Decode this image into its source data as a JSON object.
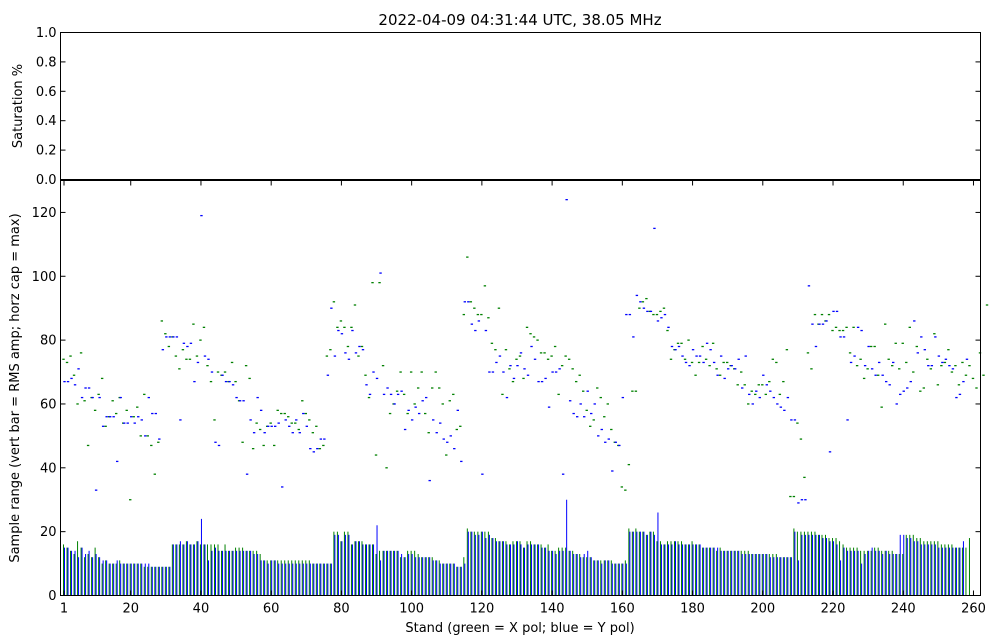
{
  "chart_data": {
    "title": "2022-04-09 04:31:44 UTC, 38.05 MHz",
    "xlabel": "Stand (green = X pol; blue = Y pol)",
    "colors": {
      "x_pol": "#008000",
      "y_pol": "#0000ff",
      "sat_line": "#c8c8c8"
    },
    "xlim": [
      0,
      262
    ],
    "xticks": [
      1,
      20,
      40,
      60,
      80,
      100,
      120,
      140,
      160,
      180,
      200,
      220,
      240,
      260
    ],
    "panels": [
      {
        "type": "line",
        "ylabel": "Saturation %",
        "ylim": [
          0,
          1
        ],
        "yticks": [
          "0.0",
          "0.2",
          "0.4",
          "0.6",
          "0.8",
          "1.0"
        ],
        "sat_value": 0
      },
      {
        "type": "bar",
        "ylabel": "Sample range (vert bar = RMS amp; horz cap = max)",
        "ylim": [
          0,
          130
        ],
        "yticks": [
          "0",
          "20",
          "40",
          "60",
          "80",
          "100",
          "120"
        ],
        "x_pol": {
          "rms": [
            16,
            15,
            14,
            13,
            17,
            15,
            12,
            13,
            12,
            15,
            12,
            10,
            11,
            10,
            10,
            10,
            11,
            10,
            10,
            10,
            10,
            10,
            10,
            9,
            9,
            9,
            9,
            9,
            9,
            9,
            9,
            16,
            16,
            16,
            16,
            17,
            16,
            16,
            17,
            16,
            16,
            16,
            16,
            16,
            16,
            14,
            16,
            14,
            14,
            15,
            15,
            15,
            14,
            14,
            14,
            14,
            13,
            11,
            11,
            11,
            11,
            11,
            11,
            11,
            11,
            11,
            11,
            11,
            11,
            11,
            11,
            10,
            10,
            10,
            10,
            10,
            10,
            20,
            20,
            17,
            20,
            20,
            16,
            17,
            17,
            17,
            16,
            16,
            16,
            13,
            14,
            14,
            14,
            14,
            14,
            14,
            12,
            12,
            14,
            14,
            14,
            13,
            12,
            12,
            12,
            12,
            11,
            11,
            10,
            10,
            10,
            10,
            9,
            9,
            12,
            21,
            20,
            20,
            20,
            20,
            20,
            20,
            18,
            18,
            17,
            17,
            17,
            16,
            17,
            17,
            17,
            15,
            17,
            17,
            16,
            16,
            16,
            15,
            16,
            14,
            14,
            15,
            15,
            15,
            14,
            14,
            13,
            13,
            12,
            12,
            12,
            11,
            11,
            11,
            11,
            11,
            11,
            10,
            10,
            10,
            11,
            21,
            20,
            21,
            20,
            20,
            19,
            20,
            20,
            17,
            17,
            16,
            17,
            17,
            17,
            17,
            17,
            16,
            16,
            17,
            16,
            16,
            15,
            15,
            15,
            15,
            14,
            15,
            14,
            14,
            14,
            14,
            14,
            14,
            14,
            14,
            13,
            13,
            13,
            13,
            13,
            13,
            13,
            13,
            12,
            12,
            12,
            12,
            21,
            20,
            20,
            20,
            20,
            20,
            20,
            19,
            19,
            19,
            18,
            18,
            18,
            17,
            16,
            15,
            15,
            15,
            15,
            14,
            14,
            14,
            14,
            15,
            15,
            14,
            14,
            14,
            14,
            13,
            13,
            13,
            19,
            19,
            19,
            18,
            18,
            17,
            17,
            17,
            17,
            17,
            16,
            16,
            16,
            16,
            15,
            15,
            15,
            15,
            18
          ],
          "max": [
            74,
            73,
            75,
            69,
            60,
            76,
            61,
            47,
            62,
            58,
            63,
            68,
            53,
            56,
            61,
            57,
            62,
            54,
            58,
            30,
            56,
            59,
            50,
            63,
            50,
            47,
            38,
            48,
            86,
            82,
            78,
            81,
            75,
            71,
            77,
            74,
            74,
            85,
            75,
            80,
            84,
            72,
            67,
            55,
            70,
            69,
            70,
            67,
            73,
            67,
            61,
            48,
            72,
            68,
            46,
            54,
            52,
            47,
            53,
            54,
            47,
            58,
            57,
            57,
            56,
            54,
            54,
            52,
            61,
            57,
            55,
            51,
            53,
            46,
            47,
            75,
            77,
            92,
            84,
            86,
            84,
            78,
            84,
            91,
            75,
            78,
            69,
            62,
            98,
            44,
            98,
            72,
            40,
            57,
            60,
            64,
            70,
            63,
            57,
            70,
            60,
            65,
            70,
            57,
            51,
            65,
            70,
            65,
            60,
            44,
            61,
            63,
            52,
            53,
            88,
            106,
            92,
            90,
            88,
            88,
            97,
            87,
            79,
            77,
            90,
            63,
            77,
            71,
            67,
            74,
            75,
            68,
            84,
            82,
            81,
            80,
            76,
            76,
            74,
            75,
            78,
            63,
            72,
            75,
            74,
            71,
            67,
            69,
            64,
            58,
            53,
            55,
            65,
            62,
            56,
            60,
            52,
            48,
            47,
            34,
            33,
            41,
            64,
            64,
            90,
            92,
            93,
            89,
            88,
            88,
            89,
            90,
            83,
            74,
            77,
            79,
            79,
            74,
            80,
            73,
            69,
            73,
            78,
            74,
            72,
            79,
            71,
            69,
            73,
            73,
            72,
            71,
            66,
            70,
            66,
            60,
            64,
            63,
            66,
            66,
            63,
            67,
            74,
            73,
            63,
            67,
            77,
            31,
            31,
            54,
            49,
            37,
            76,
            71,
            88,
            85,
            88,
            86,
            88,
            83,
            84,
            83,
            83,
            84,
            76,
            84,
            72,
            74,
            68,
            71,
            78,
            78,
            69,
            59,
            85,
            74,
            72,
            79,
            71,
            79,
            73,
            84,
            70,
            78,
            64,
            65,
            74,
            71,
            82,
            66,
            72,
            73,
            77,
            70,
            72,
            66,
            73,
            69,
            72,
            68,
            65,
            76,
            69,
            91
          ]
        },
        "y_pol": {
          "rms": [
            15,
            15,
            14,
            14,
            12,
            15,
            13,
            14,
            12,
            13,
            12,
            11,
            11,
            10,
            10,
            11,
            10,
            10,
            10,
            10,
            10,
            10,
            10,
            10,
            10,
            9,
            9,
            9,
            9,
            9,
            9,
            16,
            16,
            17,
            16,
            17,
            16,
            16,
            17,
            24,
            16,
            11,
            14,
            15,
            14,
            14,
            14,
            14,
            14,
            14,
            14,
            14,
            14,
            14,
            13,
            13,
            11,
            11,
            10,
            11,
            11,
            10,
            10,
            10,
            10,
            10,
            10,
            10,
            10,
            10,
            10,
            10,
            10,
            10,
            10,
            10,
            10,
            19,
            19,
            17,
            19,
            19,
            16,
            17,
            17,
            16,
            16,
            16,
            16,
            22,
            11,
            14,
            14,
            14,
            14,
            14,
            13,
            12,
            13,
            13,
            12,
            12,
            12,
            12,
            12,
            11,
            11,
            10,
            10,
            10,
            10,
            10,
            9,
            9,
            10,
            20,
            20,
            19,
            19,
            20,
            18,
            19,
            18,
            17,
            17,
            17,
            16,
            16,
            16,
            17,
            16,
            15,
            16,
            16,
            16,
            16,
            15,
            15,
            14,
            14,
            13,
            14,
            14,
            30,
            14,
            13,
            13,
            12,
            13,
            14,
            12,
            11,
            11,
            10,
            11,
            11,
            10,
            10,
            10,
            10,
            10,
            20,
            20,
            20,
            20,
            20,
            19,
            20,
            19,
            26,
            16,
            16,
            16,
            16,
            17,
            16,
            16,
            16,
            16,
            16,
            16,
            16,
            15,
            15,
            15,
            15,
            15,
            14,
            14,
            14,
            14,
            14,
            14,
            13,
            13,
            13,
            13,
            13,
            13,
            13,
            13,
            12,
            12,
            12,
            12,
            12,
            12,
            12,
            20,
            11,
            19,
            19,
            19,
            19,
            19,
            19,
            18,
            18,
            17,
            17,
            16,
            11,
            15,
            14,
            14,
            14,
            14,
            10,
            13,
            14,
            15,
            14,
            14,
            13,
            14,
            13,
            13,
            13,
            19,
            19,
            18,
            18,
            17,
            17,
            16,
            16,
            16,
            16,
            16,
            15,
            15,
            15,
            15,
            15,
            15,
            15,
            17
          ],
          "max": [
            67,
            67,
            68,
            66,
            71,
            62,
            65,
            65,
            62,
            33,
            62,
            53,
            56,
            56,
            56,
            42,
            62,
            54,
            54,
            56,
            54,
            56,
            55,
            50,
            62,
            57,
            57,
            49,
            77,
            81,
            81,
            81,
            81,
            55,
            79,
            78,
            79,
            67,
            73,
            119,
            75,
            74,
            70,
            48,
            47,
            69,
            67,
            67,
            66,
            62,
            61,
            61,
            38,
            55,
            51,
            62,
            58,
            51,
            53,
            53,
            53,
            54,
            34,
            55,
            53,
            51,
            55,
            51,
            57,
            53,
            46,
            45,
            46,
            49,
            49,
            69,
            90,
            75,
            83,
            82,
            76,
            74,
            83,
            76,
            78,
            77,
            66,
            63,
            70,
            68,
            101,
            63,
            65,
            63,
            60,
            63,
            64,
            52,
            58,
            55,
            59,
            57,
            61,
            62,
            36,
            55,
            51,
            54,
            49,
            48,
            50,
            46,
            58,
            42,
            92,
            92,
            85,
            83,
            86,
            38,
            83,
            70,
            70,
            73,
            75,
            70,
            62,
            72,
            68,
            72,
            76,
            71,
            69,
            78,
            74,
            67,
            67,
            68,
            59,
            70,
            70,
            71,
            38,
            124,
            61,
            57,
            56,
            60,
            56,
            64,
            57,
            60,
            50,
            52,
            48,
            49,
            39,
            48,
            47,
            62,
            88,
            88,
            81,
            94,
            92,
            90,
            89,
            89,
            115,
            86,
            87,
            88,
            84,
            78,
            77,
            78,
            75,
            73,
            72,
            77,
            75,
            75,
            73,
            79,
            77,
            73,
            69,
            75,
            68,
            71,
            72,
            71,
            74,
            65,
            75,
            63,
            60,
            64,
            62,
            69,
            66,
            64,
            62,
            60,
            59,
            58,
            62,
            55,
            55,
            29,
            30,
            30,
            97,
            85,
            78,
            85,
            85,
            86,
            45,
            89,
            89,
            81,
            81,
            55,
            73,
            75,
            84,
            83,
            72,
            78,
            71,
            69,
            73,
            69,
            67,
            66,
            73,
            60,
            63,
            64,
            65,
            67,
            86,
            76,
            81,
            77,
            72,
            72,
            81,
            75,
            73,
            74,
            72,
            71,
            62,
            63,
            67,
            74
          ]
        }
      }
    ]
  }
}
